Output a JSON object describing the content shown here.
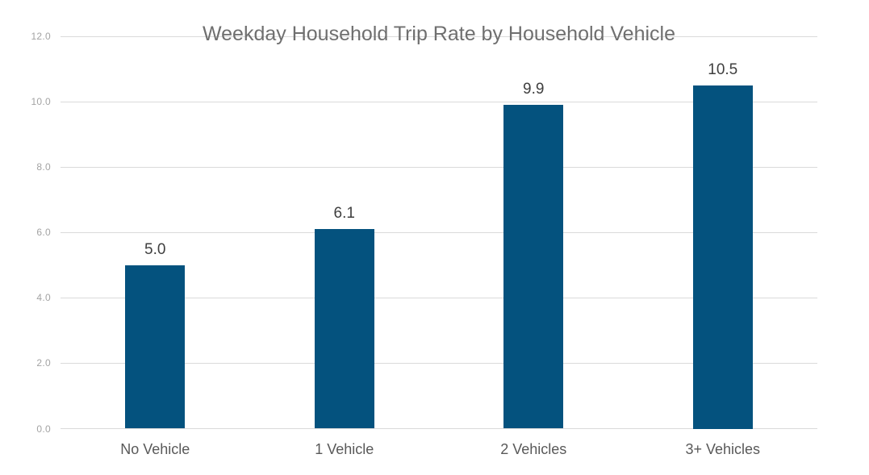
{
  "chart": {
    "title": "Weekday Household Trip Rate by Household Vehicle"
  },
  "chart_data": {
    "type": "bar",
    "title": "Weekday Household Trip Rate by Household Vehicle",
    "categories": [
      "No Vehicle",
      "1 Vehicle",
      "2 Vehicles",
      "3+ Vehicles"
    ],
    "values": [
      5.0,
      6.1,
      9.9,
      10.5
    ],
    "value_labels": [
      "5.0",
      "6.1",
      "9.9",
      "10.5"
    ],
    "xlabel": "",
    "ylabel": "",
    "ylim": [
      0,
      12
    ],
    "yticks": [
      0.0,
      2.0,
      4.0,
      6.0,
      8.0,
      10.0,
      12.0
    ],
    "ytick_labels": [
      "0.0",
      "2.0",
      "4.0",
      "6.0",
      "8.0",
      "10.0",
      "12.0"
    ],
    "grid": true,
    "legend_position": "none",
    "colors": {
      "bar": "#04527E",
      "gridline": "#DADADA",
      "title_text": "#6F6F6F",
      "ytick_text": "#A3A3A3",
      "category_text": "#595959",
      "value_label_text": "#3F3F3F",
      "background": "#FFFFFF"
    }
  }
}
